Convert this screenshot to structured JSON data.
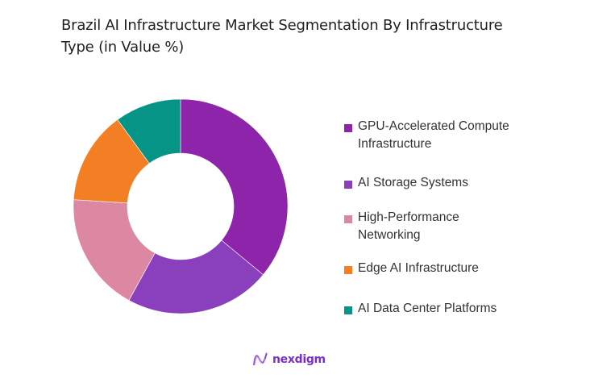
{
  "title": "Brazil AI Infrastructure Market Segmentation By Infrastructure Type (in Value %)",
  "legend": {
    "items": [
      {
        "label": "GPU-Accelerated Compute Infrastructure",
        "color": "#8e24aa"
      },
      {
        "label": "AI Storage Systems",
        "color": "#8a3fbd"
      },
      {
        "label": "High-Performance Networking",
        "color": "#dd88a2"
      },
      {
        "label": "Edge AI Infrastructure",
        "color": "#f47e24"
      },
      {
        "label": "AI Data Center Platforms",
        "color": "#069487"
      }
    ]
  },
  "logo": {
    "text": "nexdigm",
    "icon": "nexdigm-wave-logo-icon"
  },
  "chart_data": {
    "type": "pie",
    "subtype": "donut",
    "title": "Brazil AI Infrastructure Market Segmentation By Infrastructure Type (in Value %)",
    "categories": [
      "GPU-Accelerated Compute Infrastructure",
      "AI Storage Systems",
      "High-Performance Networking",
      "Edge AI Infrastructure",
      "AI Data Center Platforms"
    ],
    "values": [
      36,
      22,
      18,
      14,
      10
    ],
    "colors": [
      "#8e24aa",
      "#8a3fbd",
      "#dd88a2",
      "#f47e24",
      "#069487"
    ],
    "unit": "%",
    "start_angle": "12 o'clock, clockwise",
    "legend_position": "right",
    "data_labels": false
  }
}
